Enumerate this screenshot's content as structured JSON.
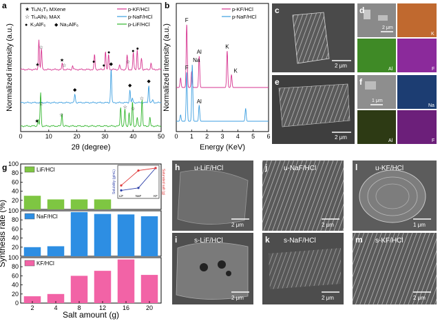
{
  "figure": {
    "panel_letters": [
      "a",
      "b",
      "c",
      "d",
      "e",
      "f",
      "g",
      "h",
      "i",
      "j",
      "k",
      "l",
      "m"
    ]
  },
  "chart_data": [
    {
      "panel": "a",
      "type": "line",
      "xlabel": "2θ (degree)",
      "ylabel": "Normalized intensity (a.u.)",
      "xlim": [
        0,
        50
      ],
      "xticks": [
        0,
        10,
        20,
        30,
        40,
        50
      ],
      "legend_left": [
        {
          "marker": "★",
          "label": "Ti₄N₃Tₓ MXene"
        },
        {
          "marker": "☆",
          "label": "Ti₄AlN₃ MAX"
        },
        {
          "marker": "●",
          "label": "K₃AlF₆"
        },
        {
          "marker": "◆",
          "label": "Na₃AlF₆"
        }
      ],
      "series": [
        {
          "name": "p-KF/HCl",
          "color": "#d6338f",
          "peaks": [
            [
              6.5,
              80
            ],
            [
              7.4,
              55
            ],
            [
              14.8,
              16
            ],
            [
              18.5,
              10
            ],
            [
              26.3,
              40
            ],
            [
              30.2,
              48
            ],
            [
              31.3,
              40
            ],
            [
              35.2,
              12
            ],
            [
              37.9,
              38
            ],
            [
              40.1,
              45
            ],
            [
              41.5,
              52
            ],
            [
              43.0,
              30
            ],
            [
              46.4,
              18
            ]
          ]
        },
        {
          "name": "p-NaF/HCl",
          "color": "#3b9ee0",
          "peaks": [
            [
              19.3,
              25
            ],
            [
              32.2,
              100
            ],
            [
              38.9,
              38
            ],
            [
              39.8,
              12
            ],
            [
              45.6,
              50
            ],
            [
              47.0,
              8
            ]
          ]
        },
        {
          "name": "p-LiF/HCl",
          "color": "#2fb52a",
          "peaks": [
            [
              6.2,
              20
            ],
            [
              7.1,
              98
            ],
            [
              14.7,
              38
            ],
            [
              35.6,
              55
            ],
            [
              37.1,
              50
            ],
            [
              38.6,
              40
            ],
            [
              39.8,
              72
            ],
            [
              41.5,
              25
            ],
            [
              43.2,
              80
            ],
            [
              46.0,
              25
            ]
          ]
        }
      ],
      "markers": [
        {
          "x": 6.0,
          "series": 0,
          "symbol": "★"
        },
        {
          "x": 7.3,
          "series": 0,
          "symbol": "☆"
        },
        {
          "x": 14.7,
          "series": 0,
          "symbol": "★"
        },
        {
          "x": 15.5,
          "series": 0,
          "symbol": "☆"
        },
        {
          "x": 26.0,
          "series": 0,
          "symbol": "●"
        },
        {
          "x": 29.6,
          "series": 0,
          "symbol": "●"
        },
        {
          "x": 31.4,
          "series": 0,
          "symbol": "●"
        },
        {
          "x": 38.2,
          "series": 0,
          "symbol": "☆"
        },
        {
          "x": 40.0,
          "series": 0,
          "symbol": "●"
        },
        {
          "x": 41.6,
          "series": 0,
          "symbol": "●"
        },
        {
          "x": 19.3,
          "series": 1,
          "symbol": "◆"
        },
        {
          "x": 32.2,
          "series": 1,
          "symbol": "◆"
        },
        {
          "x": 38.9,
          "series": 1,
          "symbol": "◆"
        },
        {
          "x": 45.6,
          "series": 1,
          "symbol": "◆"
        },
        {
          "x": 5.8,
          "series": 2,
          "symbol": "★"
        },
        {
          "x": 7.3,
          "series": 2,
          "symbol": "☆"
        },
        {
          "x": 14.5,
          "series": 2,
          "symbol": "☆"
        },
        {
          "x": 37.2,
          "series": 2,
          "symbol": "☆"
        },
        {
          "x": 40.0,
          "series": 2,
          "symbol": "☆"
        },
        {
          "x": 43.1,
          "series": 2,
          "symbol": "☆"
        }
      ]
    },
    {
      "panel": "b",
      "type": "line",
      "xlabel": "Energy (KeV)",
      "ylabel": "Normalized intensity (a.u.)",
      "xlim": [
        0,
        6
      ],
      "xticks": [
        0,
        1,
        2,
        3,
        4,
        5,
        6
      ],
      "series": [
        {
          "name": "p-KF/HCl",
          "color": "#d6338f",
          "peaks": [
            [
              0.28,
              15
            ],
            [
              0.68,
              100
            ],
            [
              1.0,
              25
            ],
            [
              1.49,
              50
            ],
            [
              3.31,
              58
            ],
            [
              3.59,
              20
            ]
          ],
          "labels": [
            {
              "x": 0.68,
              "text": "F"
            },
            {
              "x": 1.49,
              "text": "Al"
            },
            {
              "x": 3.31,
              "text": "K"
            },
            {
              "x": 3.59,
              "text": "K"
            }
          ]
        },
        {
          "name": "p-NaF/HCl",
          "color": "#3b9ee0",
          "peaks": [
            [
              0.28,
              10
            ],
            [
              0.68,
              78
            ],
            [
              1.04,
              90
            ],
            [
              1.49,
              25
            ],
            [
              4.51,
              20
            ]
          ],
          "labels": [
            {
              "x": 0.68,
              "text": "F"
            },
            {
              "x": 1.04,
              "text": "Na"
            },
            {
              "x": 1.49,
              "text": "Al"
            }
          ]
        }
      ]
    },
    {
      "panel": "g",
      "type": "bar",
      "xlabel": "Salt amount (g)",
      "ylabel": "Synthesis rate (%)",
      "categories": [
        "2",
        "4",
        "8",
        "12",
        "16",
        "20"
      ],
      "ylim": [
        0,
        100
      ],
      "yticks": [
        0,
        20,
        40,
        60,
        80,
        100
      ],
      "series": [
        {
          "name": "LiF/HCl",
          "color": "#7ec642",
          "values": [
            30,
            22,
            22,
            22,
            0,
            0
          ]
        },
        {
          "name": "NaF/HCl",
          "color": "#2d8ee3",
          "values": [
            20,
            22,
            97,
            93,
            92,
            88
          ]
        },
        {
          "name": "KF/HCl",
          "color": "#f263a6",
          "values": [
            15,
            20,
            60,
            71,
            96,
            62
          ]
        }
      ],
      "inset": {
        "type": "line",
        "left_ylabel": "Solubility (g/mL)",
        "right_ylabel": "Saturated salt (g)",
        "categories": [
          "LiF",
          "NaF",
          "KF"
        ],
        "series": [
          {
            "name": "Solubility",
            "color": "#2b3ea8",
            "values": [
              0.1,
              0.2,
              1.0
            ]
          },
          {
            "name": "Saturated salt",
            "color": "#e03a3a",
            "values": [
              0.3,
              0.9,
              1.0
            ]
          }
        ]
      }
    }
  ],
  "sem": {
    "c": {
      "scale": "2 μm"
    },
    "d": {
      "scale": "2 μm",
      "maps": [
        "K",
        "Al",
        "F"
      ]
    },
    "e": {
      "scale": "2 μm"
    },
    "f": {
      "scale": "1 μm",
      "maps": [
        "Na",
        "Al",
        "F"
      ]
    },
    "h": {
      "label": "u-LiF/HCl",
      "scale": "2 μm"
    },
    "i": {
      "label": "s-LiF/HCl",
      "scale": "2 μm"
    },
    "j": {
      "label": "u-NaF/HCl",
      "scale": "2 μm"
    },
    "k": {
      "label": "s-NaF/HCl",
      "scale": "2 μm"
    },
    "l": {
      "label": "u-KF/HCl",
      "scale": "1 μm"
    },
    "m": {
      "label": "s-KF/HCl",
      "scale": "2 μm"
    }
  },
  "colors": {
    "kf": "#d6338f",
    "naf": "#3b9ee0",
    "lif": "#2fb52a",
    "bar_lif": "#7ec642",
    "bar_naf": "#2d8ee3",
    "bar_kf": "#f263a6",
    "map_k": "#c0692f",
    "map_al": "#3f8a26",
    "map_f": "#8b2a9b",
    "map_na": "#1c3d72"
  }
}
